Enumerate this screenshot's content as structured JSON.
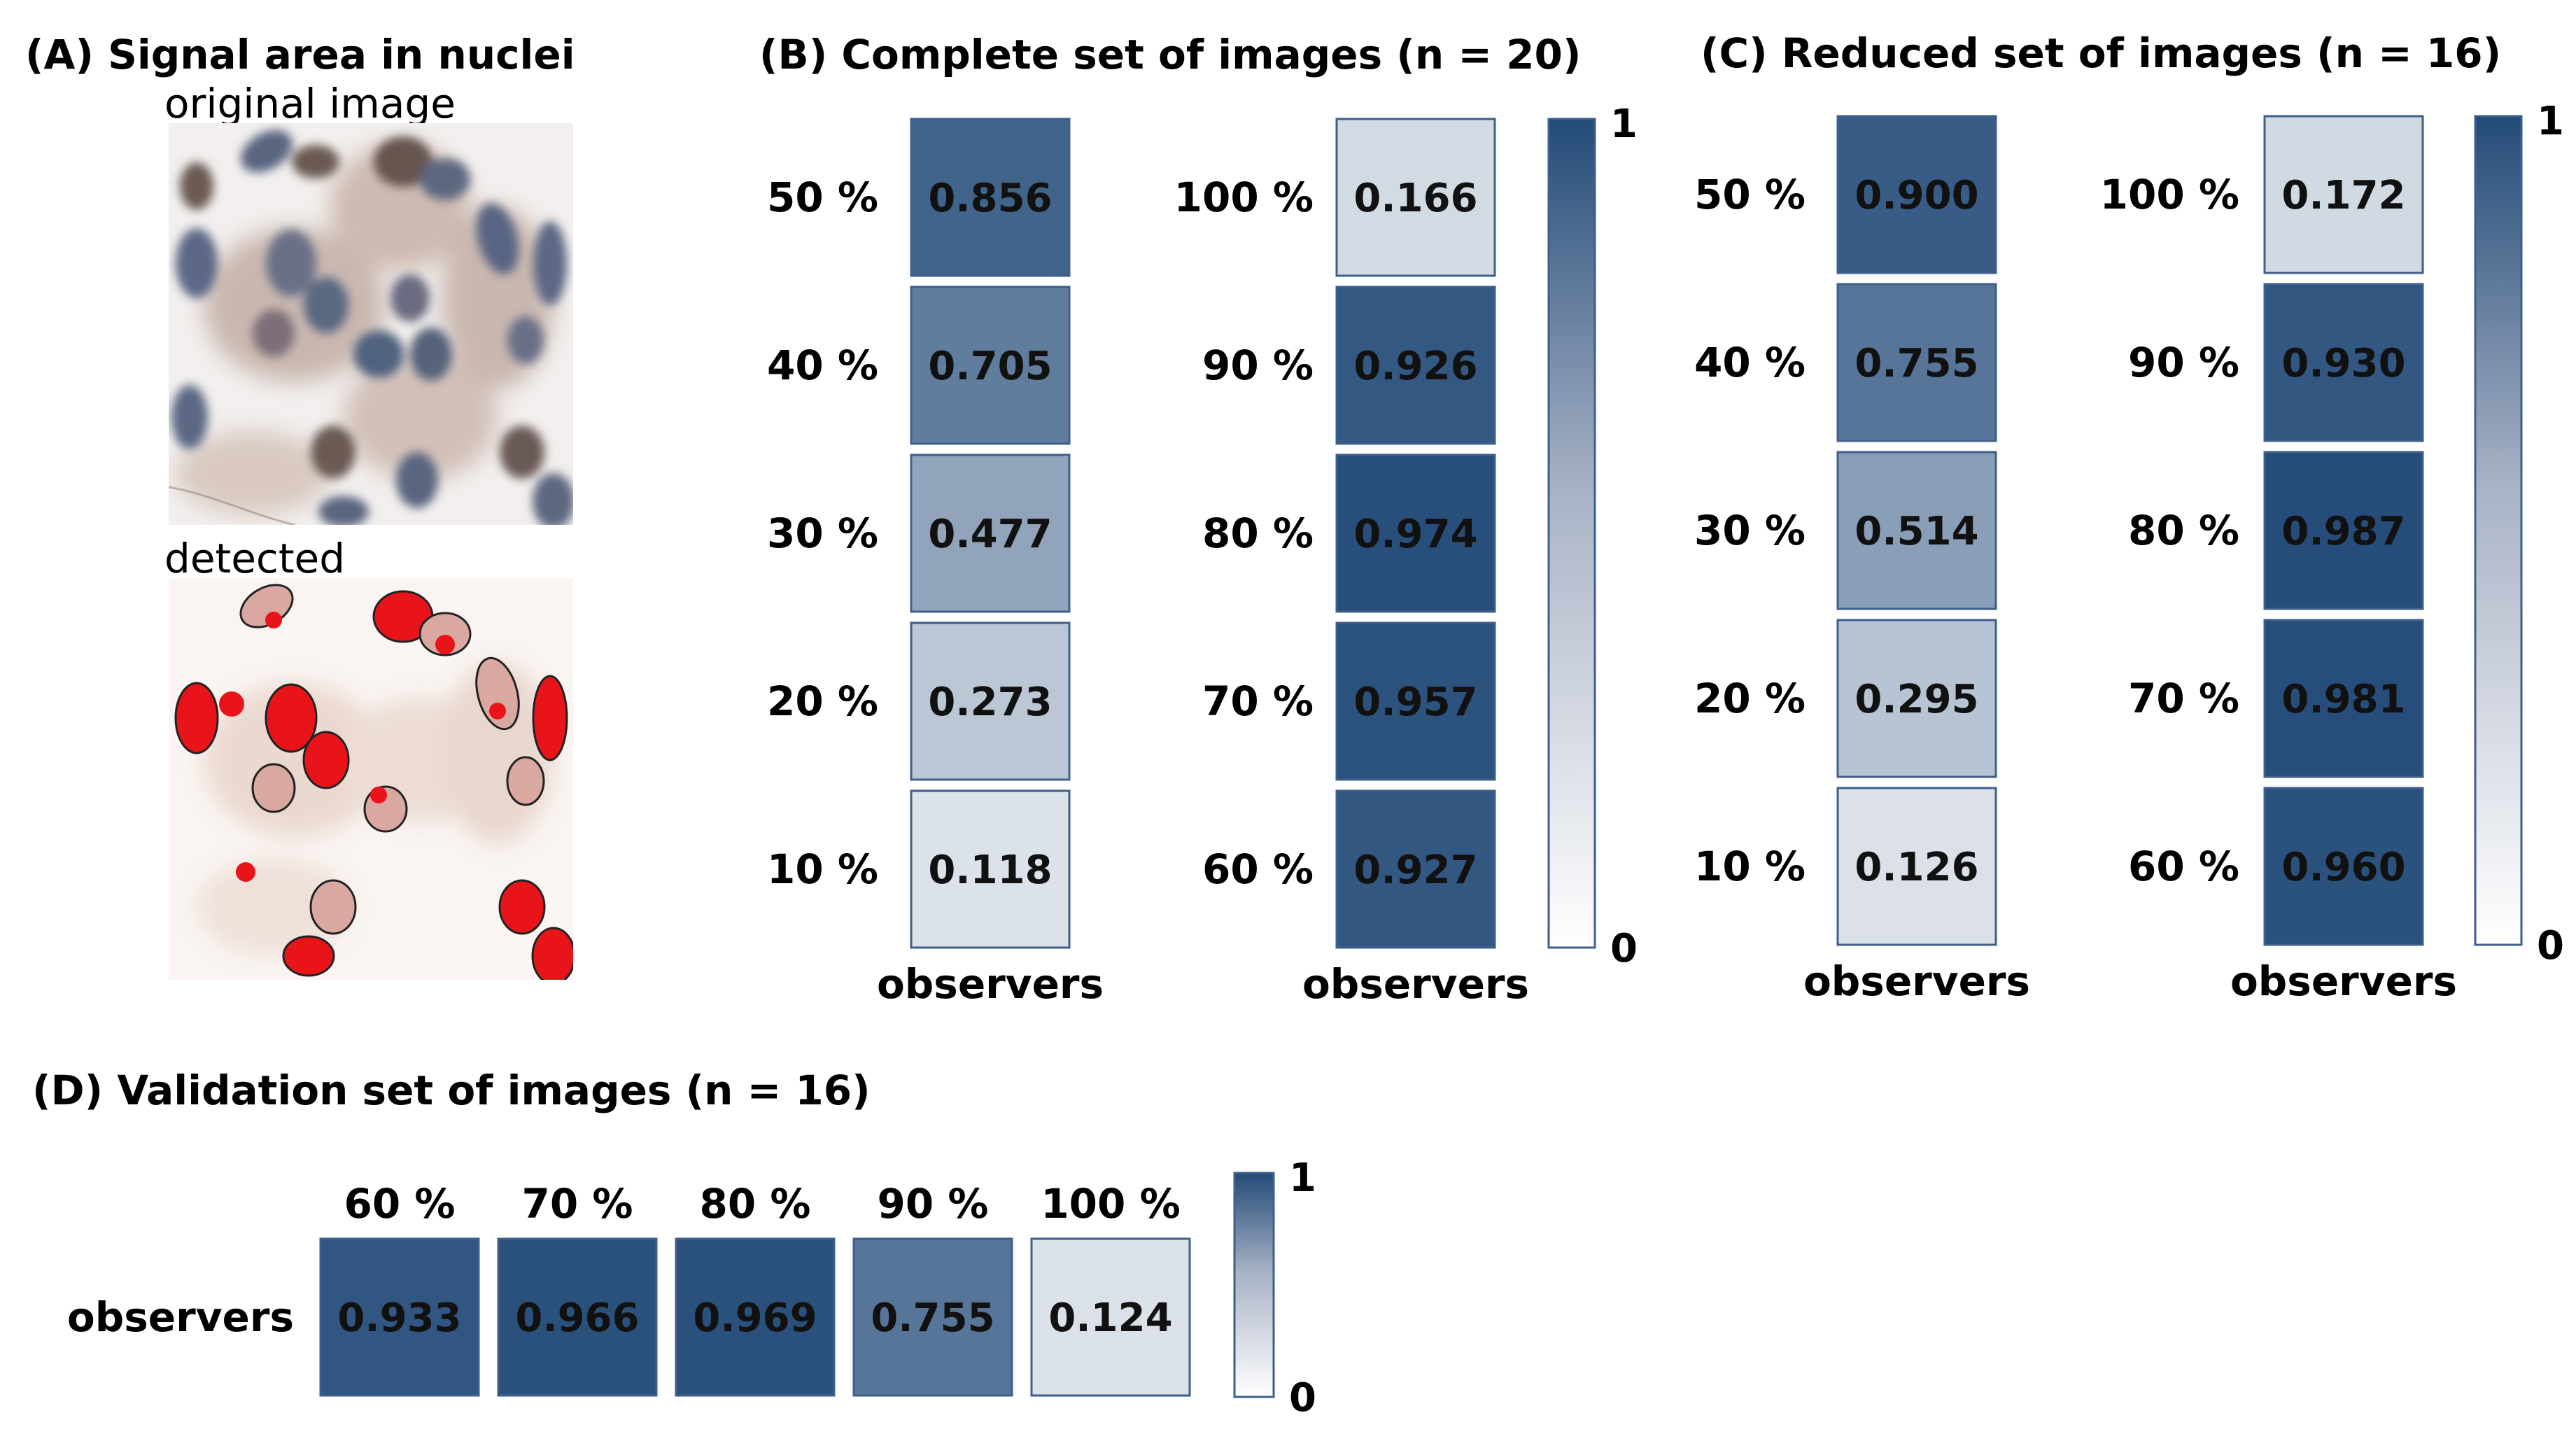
{
  "panelA": {
    "title": "(A) Signal area in nuclei",
    "top_label": "original image",
    "bottom_label": "detected"
  },
  "colors": {
    "low": "#f5f6f9",
    "high": "#234b78",
    "cell_border": "#3d5f8c",
    "text_light": "#ffffff",
    "text_dark": "#111111",
    "detect_red": "#e8141a",
    "nucleus": "#5f6f8a",
    "cytoplasm": "#8a6a58"
  },
  "chart_data": [
    {
      "type": "heatmap",
      "title": "(B) Complete set of images (n = 20)",
      "columns": [
        {
          "xlabel": "observers",
          "categories": [
            "50 %",
            "40 %",
            "30 %",
            "20 %",
            "10 %"
          ],
          "values": [
            0.856,
            0.705,
            0.477,
            0.273,
            0.118
          ]
        },
        {
          "xlabel": "observers",
          "categories": [
            "100 %",
            "90 %",
            "80 %",
            "70 %",
            "60 %"
          ],
          "values": [
            0.166,
            0.926,
            0.974,
            0.957,
            0.927
          ]
        }
      ],
      "colorbar": {
        "min": 0,
        "max": 1,
        "min_label": "0",
        "max_label": "1"
      }
    },
    {
      "type": "heatmap",
      "title": "(C) Reduced set of images (n = 16)",
      "columns": [
        {
          "xlabel": "observers",
          "categories": [
            "50 %",
            "40 %",
            "30 %",
            "20 %",
            "10 %"
          ],
          "values": [
            0.9,
            0.755,
            0.514,
            0.295,
            0.126
          ]
        },
        {
          "xlabel": "observers",
          "categories": [
            "100 %",
            "90 %",
            "80 %",
            "70 %",
            "60 %"
          ],
          "values": [
            0.172,
            0.93,
            0.987,
            0.981,
            0.96
          ]
        }
      ],
      "colorbar": {
        "min": 0,
        "max": 1,
        "min_label": "0",
        "max_label": "1"
      }
    },
    {
      "type": "heatmap",
      "title": "(D) Validation set of images (n = 16)",
      "row_label": "observers",
      "categories": [
        "60 %",
        "70 %",
        "80 %",
        "90 %",
        "100 %"
      ],
      "values": [
        0.933,
        0.966,
        0.969,
        0.755,
        0.124
      ],
      "colorbar": {
        "min": 0,
        "max": 1,
        "min_label": "0",
        "max_label": "1"
      }
    }
  ]
}
